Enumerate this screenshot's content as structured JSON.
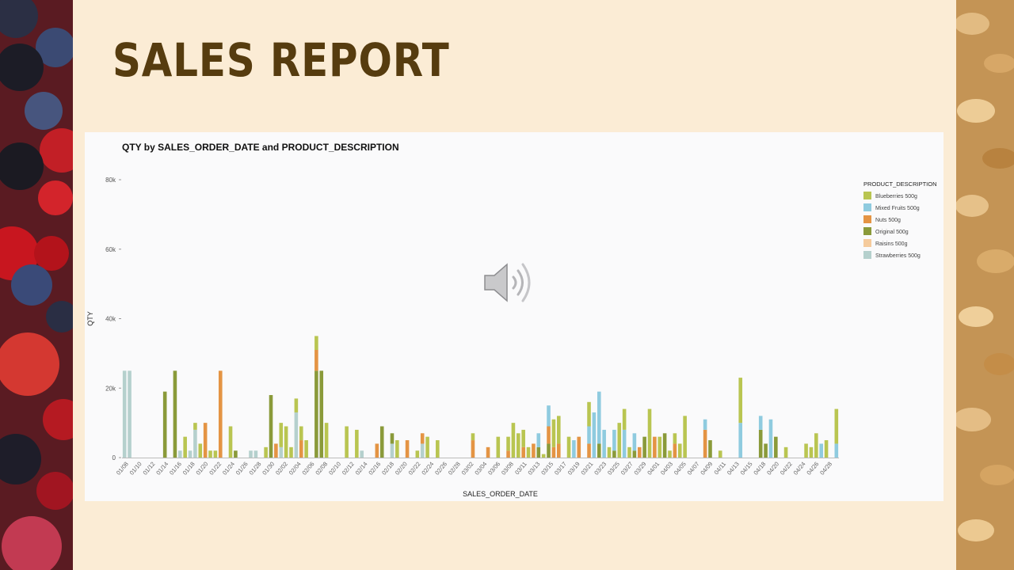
{
  "slide": {
    "title": "SALES REPORT"
  },
  "decor": {
    "left_image": "berries-photo",
    "right_image": "oat-flakes-photo",
    "audio_icon": "speaker-icon"
  },
  "colors": {
    "background": "#fbecd5",
    "title": "#563c0f",
    "panel": "#fafafb"
  },
  "chart_data": {
    "type": "bar",
    "stacked": true,
    "title": "QTY by SALES_ORDER_DATE and PRODUCT_DESCRIPTION",
    "xlabel": "SALES_ORDER_DATE",
    "ylabel": "QTY",
    "ylim": [
      0,
      80000
    ],
    "yticks": [
      0,
      20000,
      40000,
      60000,
      80000
    ],
    "ytick_labels": [
      "0",
      "20k",
      "40k",
      "60k",
      "80k"
    ],
    "grid": false,
    "legend": {
      "title": "PRODUCT_DESCRIPTION",
      "placement": "right"
    },
    "x_tick_labels": [
      "01/08",
      "01/10",
      "01/12",
      "01/14",
      "01/16",
      "01/18",
      "01/20",
      "01/22",
      "01/24",
      "01/26",
      "01/28",
      "01/30",
      "02/02",
      "02/04",
      "02/06",
      "02/08",
      "02/10",
      "02/12",
      "02/14",
      "02/16",
      "02/18",
      "02/20",
      "02/22",
      "02/24",
      "02/26",
      "02/28",
      "03/02",
      "03/04",
      "03/06",
      "03/08",
      "03/11",
      "03/13",
      "03/15",
      "03/17",
      "03/19",
      "03/21",
      "03/23",
      "03/25",
      "03/27",
      "03/29",
      "04/01",
      "04/03",
      "04/05",
      "04/07",
      "04/09",
      "04/11",
      "04/13",
      "04/15",
      "04/18",
      "04/20",
      "04/22",
      "04/24",
      "04/26",
      "04/28"
    ],
    "series": [
      {
        "name": "Blueberries 500g",
        "color": "#b9c551",
        "values": [
          0,
          0,
          0,
          0,
          0,
          0,
          0,
          0,
          0,
          0,
          0,
          0,
          6000,
          0,
          2000,
          4000,
          0,
          2000,
          2000,
          0,
          0,
          9000,
          0,
          0,
          0,
          0,
          0,
          0,
          3000,
          0,
          0,
          7000,
          9000,
          3000,
          4000,
          4000,
          5000,
          0,
          4000,
          0,
          10000,
          0,
          0,
          0,
          9000,
          0,
          8000,
          0,
          0,
          0,
          0,
          0,
          0,
          0,
          5000,
          0,
          0,
          0,
          2000,
          0,
          6000,
          0,
          5000,
          0,
          0,
          0,
          0,
          0,
          0,
          2000,
          0,
          0,
          0,
          0,
          6000,
          0,
          4000,
          10000,
          7000,
          5000,
          3000,
          0,
          0,
          1000,
          0,
          8000,
          8000,
          0,
          6000,
          0,
          0,
          0,
          7000,
          0,
          0,
          0,
          3000,
          0,
          10000,
          6000,
          3000,
          0,
          0,
          0,
          14000,
          0,
          6000,
          0,
          2000,
          3000,
          4000,
          12000,
          0,
          0,
          0,
          0,
          0,
          0,
          2000,
          0,
          0,
          0,
          13000,
          0,
          0,
          0,
          0,
          0,
          0,
          0,
          0,
          3000,
          0,
          0,
          0,
          4000,
          3000,
          7000,
          0,
          5000,
          0,
          10000
        ]
      },
      {
        "name": "Mixed Fruits 500g",
        "color": "#8fcbdf",
        "values": [
          0,
          0,
          0,
          0,
          0,
          0,
          0,
          0,
          0,
          0,
          0,
          0,
          0,
          0,
          0,
          0,
          0,
          0,
          0,
          0,
          0,
          0,
          0,
          0,
          0,
          0,
          0,
          0,
          0,
          0,
          0,
          0,
          0,
          0,
          0,
          0,
          0,
          0,
          0,
          0,
          0,
          0,
          0,
          0,
          0,
          0,
          0,
          0,
          0,
          0,
          0,
          0,
          0,
          0,
          0,
          0,
          0,
          0,
          0,
          0,
          0,
          0,
          0,
          0,
          0,
          0,
          0,
          0,
          0,
          0,
          0,
          0,
          0,
          0,
          0,
          0,
          0,
          0,
          0,
          0,
          0,
          0,
          4000,
          0,
          6000,
          0,
          0,
          0,
          0,
          5000,
          0,
          0,
          5000,
          13000,
          15000,
          8000,
          0,
          6000,
          0,
          8000,
          0,
          5000,
          0,
          0,
          0,
          0,
          0,
          0,
          0,
          0,
          0,
          0,
          0,
          0,
          0,
          3000,
          0,
          0,
          0,
          0,
          0,
          0,
          10000,
          0,
          0,
          0,
          4000,
          0,
          11000,
          0,
          0,
          0,
          0,
          0,
          0,
          0,
          0,
          0,
          4000,
          0,
          0,
          4000,
          0,
          0,
          0,
          4000,
          0,
          0,
          0,
          7000,
          0,
          0,
          0,
          0,
          0,
          4000,
          0,
          0,
          7000,
          0,
          0,
          0,
          0,
          0,
          0,
          0,
          0,
          0,
          0,
          0,
          0
        ]
      },
      {
        "name": "Nuts 500g",
        "color": "#e49444",
        "values": [
          0,
          0,
          0,
          0,
          0,
          0,
          0,
          0,
          0,
          0,
          0,
          0,
          0,
          0,
          0,
          0,
          10000,
          0,
          0,
          25000,
          0,
          0,
          0,
          0,
          0,
          0,
          0,
          0,
          0,
          0,
          4000,
          0,
          0,
          0,
          0,
          5000,
          0,
          0,
          6000,
          0,
          0,
          0,
          0,
          0,
          0,
          0,
          0,
          0,
          0,
          0,
          4000,
          0,
          0,
          0,
          0,
          0,
          5000,
          0,
          0,
          3000,
          0,
          0,
          0,
          0,
          0,
          0,
          0,
          0,
          0,
          5000,
          0,
          0,
          3000,
          0,
          0,
          0,
          2000,
          0,
          0,
          3000,
          0,
          4000,
          0,
          0,
          5000,
          3000,
          4000,
          0,
          0,
          0,
          6000,
          0,
          4000,
          0,
          0,
          0,
          0,
          0,
          0,
          0,
          0,
          0,
          3000,
          0,
          0,
          6000,
          0,
          0,
          0,
          4000,
          0,
          0,
          0,
          0,
          0,
          8000,
          0,
          0,
          0,
          0,
          0,
          0,
          0,
          0,
          0,
          0,
          0,
          0,
          0,
          0,
          0,
          0,
          0,
          0,
          0,
          0,
          0,
          0,
          0,
          0,
          0,
          0,
          0,
          0,
          0,
          0,
          0,
          0,
          0,
          0,
          0,
          0,
          0,
          0,
          0,
          0,
          0,
          0,
          0
        ]
      },
      {
        "name": "Original 500g",
        "color": "#8a9a3a",
        "values": [
          0,
          0,
          0,
          0,
          0,
          0,
          0,
          0,
          19000,
          0,
          25000,
          0,
          0,
          0,
          0,
          0,
          0,
          0,
          0,
          0,
          0,
          0,
          2000,
          0,
          0,
          0,
          0,
          0,
          0,
          18000,
          0,
          0,
          0,
          0,
          0,
          0,
          0,
          0,
          25000,
          25000,
          0,
          0,
          0,
          0,
          0,
          0,
          0,
          0,
          0,
          0,
          0,
          9000,
          0,
          3000,
          0,
          0,
          0,
          0,
          0,
          0,
          0,
          0,
          0,
          0,
          0,
          0,
          0,
          0,
          0,
          0,
          0,
          0,
          0,
          0,
          0,
          0,
          0,
          0,
          0,
          0,
          0,
          0,
          3000,
          0,
          4000,
          0,
          0,
          0,
          0,
          0,
          0,
          0,
          0,
          0,
          4000,
          0,
          0,
          2000,
          0,
          0,
          0,
          2000,
          0,
          6000,
          0,
          0,
          0,
          7000,
          0,
          0,
          0,
          0,
          0,
          0,
          0,
          0,
          5000,
          0,
          0,
          0,
          0,
          0,
          0,
          0,
          0,
          0,
          8000,
          4000,
          0,
          6000,
          0,
          0,
          0,
          0,
          0,
          0,
          0,
          0,
          0,
          0,
          0,
          0,
          0,
          0,
          0,
          0,
          0,
          0,
          0,
          0,
          0,
          0,
          0,
          0,
          0,
          0,
          0,
          0,
          0,
          0,
          0,
          0,
          0,
          0,
          0,
          0
        ]
      },
      {
        "name": "Raisins 500g",
        "color": "#f5cb9c",
        "values": [
          0,
          0,
          0,
          0,
          0,
          0,
          0,
          0,
          0,
          0,
          0,
          0,
          0,
          0,
          0,
          0,
          0,
          0,
          0,
          0,
          0,
          0,
          0,
          0,
          0,
          0,
          0,
          0,
          0,
          0,
          0,
          0,
          0,
          0,
          0,
          0,
          0,
          0,
          0,
          0,
          0,
          0,
          0,
          0,
          0,
          0,
          0,
          0,
          0,
          0,
          0,
          0,
          0,
          0,
          0,
          0,
          0,
          0,
          0,
          0,
          0,
          0,
          0,
          0,
          0,
          0,
          0,
          0,
          0,
          0,
          0,
          0,
          0,
          0,
          0,
          0,
          0,
          0,
          0,
          0,
          0,
          0,
          0,
          0,
          0,
          0,
          0,
          0,
          0,
          0,
          0,
          0,
          0,
          0,
          0,
          0,
          0,
          0,
          0,
          0,
          0,
          0,
          0,
          0,
          0,
          0,
          0,
          0,
          0,
          0,
          0,
          0,
          0,
          0,
          0,
          0,
          0,
          0,
          0,
          0,
          0,
          0,
          0,
          0,
          0,
          0,
          0,
          0,
          0,
          0,
          0,
          0,
          0,
          0,
          0,
          0,
          0,
          0,
          0,
          0,
          0,
          0,
          0,
          0,
          0,
          0,
          0,
          0,
          0,
          0,
          0,
          0,
          0,
          0,
          0,
          0,
          0,
          0,
          0,
          0,
          0,
          0,
          0,
          0,
          0
        ]
      },
      {
        "name": "Strawberries 500g",
        "color": "#b5d0cd",
        "values": [
          25000,
          25000,
          0,
          0,
          0,
          0,
          0,
          0,
          0,
          0,
          0,
          2000,
          0,
          2000,
          8000,
          0,
          0,
          0,
          0,
          0,
          0,
          0,
          0,
          0,
          0,
          2000,
          2000,
          0,
          0,
          0,
          0,
          3000,
          0,
          0,
          13000,
          0,
          0,
          0,
          0,
          0,
          0,
          0,
          0,
          0,
          0,
          0,
          0,
          2000,
          0,
          0,
          0,
          0,
          0,
          4000,
          0,
          0,
          0,
          0,
          0,
          4000,
          0,
          0,
          0,
          0,
          0,
          0,
          0,
          0,
          0,
          0,
          0,
          0,
          0,
          0,
          0,
          0,
          0,
          0,
          0,
          0,
          0,
          0,
          0,
          0,
          0,
          0,
          0,
          0,
          0,
          0,
          0,
          0,
          0,
          0,
          0,
          0,
          0,
          0,
          0,
          0,
          0,
          0,
          0,
          0,
          0,
          0,
          0,
          0,
          0,
          0,
          0,
          0,
          0,
          0,
          0,
          0,
          0,
          0,
          0,
          0,
          0,
          0,
          0,
          0,
          0,
          0,
          0,
          0,
          0,
          0,
          0,
          0,
          0,
          0,
          0,
          0,
          0,
          0,
          0,
          0,
          0,
          0,
          0,
          0,
          0,
          0,
          0,
          0,
          0,
          0,
          0,
          0,
          0,
          0,
          0,
          0,
          0,
          0,
          0,
          0,
          0,
          0,
          0,
          0,
          0
        ]
      }
    ]
  }
}
